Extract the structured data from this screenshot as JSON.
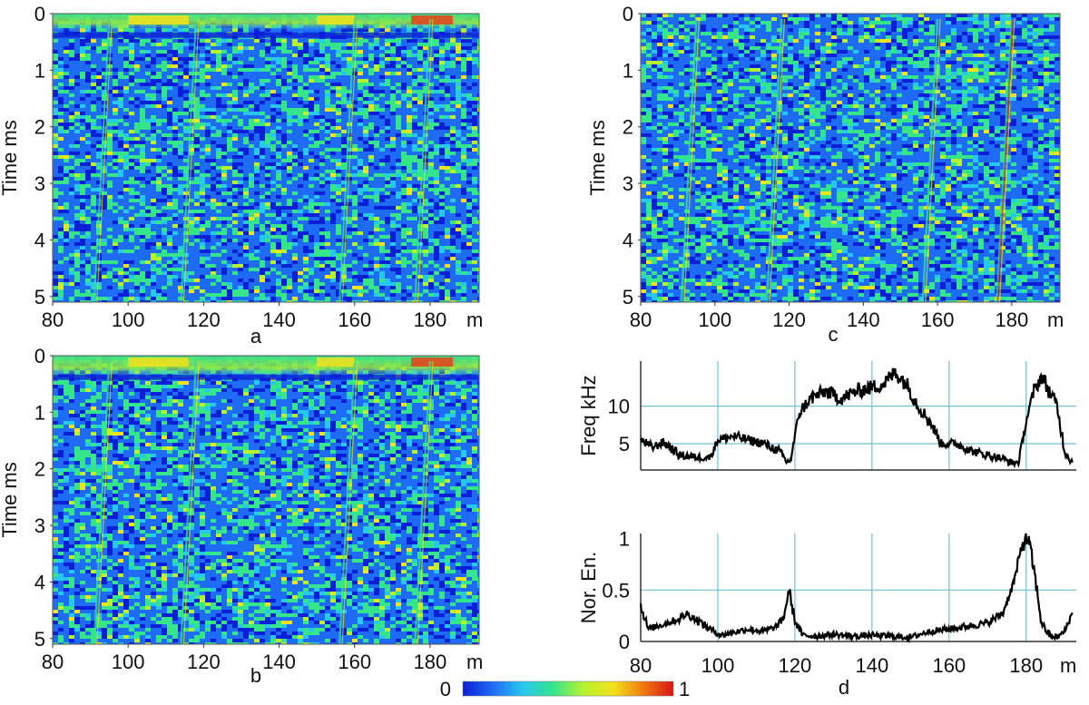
{
  "figure": {
    "colorbar": {
      "min_label": "0",
      "max_label": "1",
      "colors": [
        "#0a1fd6",
        "#1e6cf5",
        "#27c8ee",
        "#35e58a",
        "#b7f22e",
        "#f4e21c",
        "#f07a12",
        "#d81414"
      ]
    }
  },
  "chart_data": [
    {
      "id": "a",
      "type": "heatmap",
      "label": "a",
      "xlabel": "m",
      "ylabel": "Time ms",
      "xlim": [
        80,
        193
      ],
      "ylim": [
        5.1,
        0
      ],
      "xticks": [
        "80",
        "100",
        "120",
        "140",
        "160",
        "180"
      ],
      "yticks": [
        "0",
        "1",
        "2",
        "3",
        "4",
        "5"
      ],
      "value_range": [
        0,
        1
      ],
      "bright_top_band_ms": [
        0,
        0.3
      ],
      "bright_vertical_features_m": [
        95,
        118,
        160,
        180
      ]
    },
    {
      "id": "b",
      "type": "heatmap",
      "label": "b",
      "xlabel": "m",
      "ylabel": "Time ms",
      "xlim": [
        80,
        193
      ],
      "ylim": [
        5.1,
        0
      ],
      "xticks": [
        "80",
        "100",
        "120",
        "140",
        "160",
        "180"
      ],
      "yticks": [
        "0",
        "1",
        "2",
        "3",
        "4",
        "5"
      ],
      "value_range": [
        0,
        1
      ],
      "bright_top_band_ms": [
        0,
        0.3
      ],
      "bright_vertical_features_m": [
        95,
        118,
        160,
        180
      ]
    },
    {
      "id": "c",
      "type": "heatmap",
      "label": "c",
      "xlabel": "m",
      "ylabel": "Time ms",
      "xlim": [
        80,
        193
      ],
      "ylim": [
        5.1,
        0
      ],
      "xticks": [
        "80",
        "100",
        "120",
        "140",
        "160",
        "180"
      ],
      "yticks": [
        "0",
        "1",
        "2",
        "3",
        "4",
        "5"
      ],
      "value_range": [
        0,
        1
      ],
      "bright_vertical_features_m": [
        95,
        118,
        160,
        180
      ]
    },
    {
      "id": "d-top",
      "type": "line",
      "label": "",
      "xlabel": "",
      "ylabel": "Freq kHz",
      "xlim": [
        80,
        193
      ],
      "ylim": [
        1.5,
        16
      ],
      "xticks": [
        "80",
        "100",
        "120",
        "140",
        "160",
        "180"
      ],
      "yticks": [
        "5",
        "10"
      ],
      "grid": true,
      "color": "#000000",
      "series": [
        {
          "x": [
            80,
            83,
            86,
            90,
            94,
            98,
            100,
            104,
            108,
            112,
            116,
            118,
            119,
            121,
            124,
            128,
            132,
            136,
            140,
            143,
            146,
            149,
            152,
            155,
            158,
            162,
            166,
            170,
            174,
            176,
            178,
            180,
            182,
            184,
            186,
            188,
            190,
            192
          ],
          "y": [
            5.5,
            4.5,
            5.2,
            3.5,
            3.2,
            3.2,
            5.5,
            6,
            5.5,
            5,
            4,
            2.5,
            3,
            9,
            11,
            12,
            11,
            12,
            12.5,
            13,
            14.5,
            13,
            10,
            8,
            5,
            5,
            4,
            3.5,
            3,
            2.5,
            2.5,
            8,
            12,
            14,
            12,
            10,
            4,
            2.5
          ]
        }
      ]
    },
    {
      "id": "d-bottom",
      "type": "line",
      "label": "d",
      "xlabel": "m",
      "ylabel": "Nor. En.",
      "xlim": [
        80,
        193
      ],
      "ylim": [
        0,
        1.05
      ],
      "xticks": [
        "80",
        "100",
        "120",
        "140",
        "160",
        "180"
      ],
      "yticks": [
        "0",
        "0.5",
        "1"
      ],
      "grid": true,
      "color": "#000000",
      "series": [
        {
          "x": [
            80,
            82,
            86,
            90,
            92,
            95,
            98,
            101,
            104,
            108,
            112,
            115,
            117,
            118.5,
            120,
            122,
            126,
            130,
            135,
            140,
            145,
            150,
            155,
            160,
            165,
            170,
            174,
            177,
            179,
            180.5,
            182,
            184,
            186,
            188,
            190,
            192
          ],
          "y": [
            0.35,
            0.12,
            0.17,
            0.22,
            0.27,
            0.2,
            0.12,
            0.06,
            0.09,
            0.12,
            0.1,
            0.14,
            0.22,
            0.5,
            0.2,
            0.06,
            0.05,
            0.07,
            0.05,
            0.06,
            0.05,
            0.04,
            0.1,
            0.12,
            0.15,
            0.18,
            0.28,
            0.6,
            0.95,
            1.0,
            0.7,
            0.18,
            0.06,
            0.04,
            0.1,
            0.28
          ]
        }
      ]
    }
  ]
}
